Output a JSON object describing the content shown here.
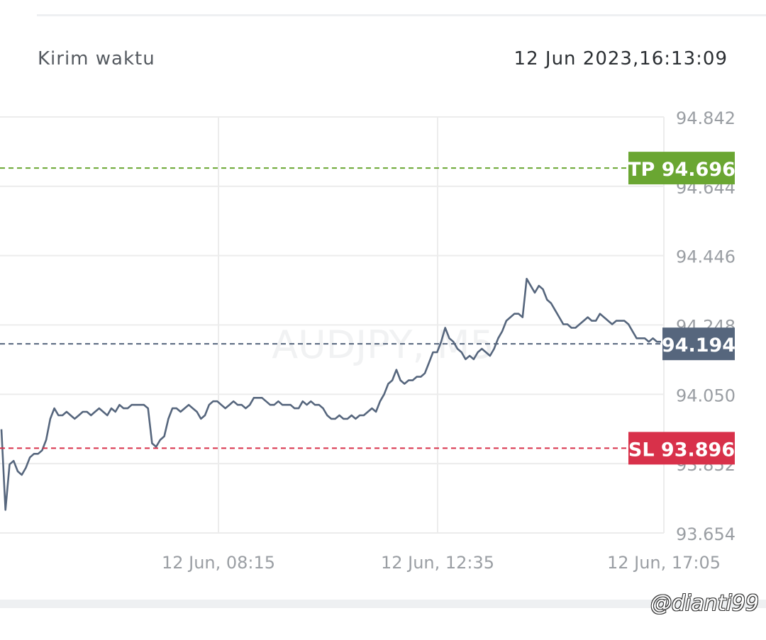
{
  "header": {
    "send_time_label": "Kirim  waktu",
    "send_time_value": "12  Jun  2023,16:13:09"
  },
  "credit": "@dianti99",
  "chart_data": {
    "type": "line",
    "watermark": "AUDJPY, M5",
    "y_ticks": [
      "94.842",
      "94.644",
      "94.446",
      "94.248",
      "94.050",
      "93.852",
      "93.654"
    ],
    "x_ticks": [
      "12  Jun,  08:15",
      "12  Jun,  12:35",
      "12  Jun,  17:05"
    ],
    "ylim": [
      93.654,
      94.842
    ],
    "take_profit": {
      "label": "TP 94.696",
      "value": 94.696,
      "color": "#6aa632"
    },
    "stop_loss": {
      "label": "SL 93.896",
      "value": 93.896,
      "color": "#d8314a"
    },
    "current_price": {
      "label": "94.194",
      "value": 94.194,
      "color": "#56667d"
    },
    "line_color": "#56667d",
    "grid": true,
    "series": [
      {
        "values": [
          93.95,
          93.72,
          93.85,
          93.86,
          93.83,
          93.82,
          93.84,
          93.87,
          93.88,
          93.88,
          93.89,
          93.92,
          93.98,
          94.01,
          93.99,
          93.99,
          94.0,
          93.99,
          93.98,
          93.99,
          94.0,
          94.0,
          93.99,
          94.0,
          94.01,
          94.0,
          93.99,
          94.01,
          94.0,
          94.02,
          94.01,
          94.01,
          94.02,
          94.02,
          94.02,
          94.02,
          94.01,
          93.91,
          93.9,
          93.92,
          93.93,
          93.98,
          94.01,
          94.01,
          94.0,
          94.01,
          94.02,
          94.01,
          94.0,
          93.98,
          93.99,
          94.02,
          94.03,
          94.03,
          94.02,
          94.01,
          94.02,
          94.03,
          94.02,
          94.02,
          94.01,
          94.02,
          94.04,
          94.04,
          94.04,
          94.03,
          94.02,
          94.02,
          94.03,
          94.02,
          94.02,
          94.02,
          94.01,
          94.01,
          94.03,
          94.02,
          94.03,
          94.02,
          94.02,
          94.01,
          93.99,
          93.98,
          93.98,
          93.99,
          93.98,
          93.98,
          93.99,
          93.98,
          93.99,
          93.99,
          94.0,
          94.01,
          94.0,
          94.03,
          94.05,
          94.08,
          94.09,
          94.12,
          94.09,
          94.08,
          94.09,
          94.09,
          94.1,
          94.1,
          94.11,
          94.14,
          94.17,
          94.17,
          94.2,
          94.24,
          94.21,
          94.2,
          94.18,
          94.17,
          94.15,
          94.16,
          94.15,
          94.17,
          94.18,
          94.17,
          94.16,
          94.18,
          94.21,
          94.23,
          94.26,
          94.27,
          94.28,
          94.28,
          94.27,
          94.38,
          94.36,
          94.34,
          94.36,
          94.35,
          94.32,
          94.31,
          94.29,
          94.27,
          94.25,
          94.25,
          94.24,
          94.24,
          94.25,
          94.26,
          94.27,
          94.26,
          94.26,
          94.28,
          94.27,
          94.26,
          94.25,
          94.26,
          94.26,
          94.26,
          94.25,
          94.23,
          94.21,
          94.21,
          94.21,
          94.2,
          94.21,
          94.2,
          94.2
        ]
      }
    ]
  }
}
